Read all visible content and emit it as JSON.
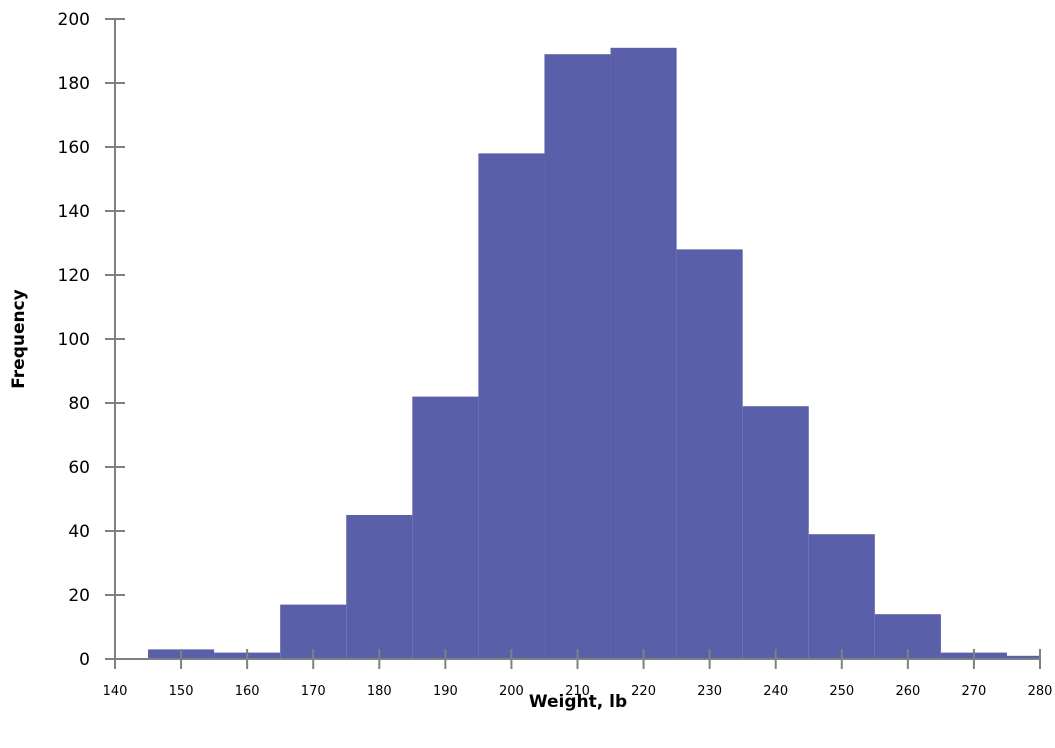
{
  "chart_data": {
    "type": "bar",
    "title": "",
    "xlabel": "Weight, lb",
    "ylabel": "Frequency",
    "xlim": [
      140,
      280
    ],
    "ylim": [
      0,
      200
    ],
    "x_ticks": [
      140,
      150,
      160,
      170,
      180,
      190,
      200,
      210,
      220,
      230,
      240,
      250,
      260,
      270,
      280
    ],
    "y_ticks": [
      0,
      20,
      40,
      60,
      80,
      100,
      120,
      140,
      160,
      180,
      200
    ],
    "bin_width": 10,
    "bins": [
      {
        "start": 145,
        "end": 155,
        "count": 3
      },
      {
        "start": 155,
        "end": 165,
        "count": 2
      },
      {
        "start": 165,
        "end": 175,
        "count": 17
      },
      {
        "start": 175,
        "end": 185,
        "count": 45
      },
      {
        "start": 185,
        "end": 195,
        "count": 82
      },
      {
        "start": 195,
        "end": 205,
        "count": 158
      },
      {
        "start": 205,
        "end": 215,
        "count": 189
      },
      {
        "start": 215,
        "end": 225,
        "count": 191
      },
      {
        "start": 225,
        "end": 235,
        "count": 128
      },
      {
        "start": 235,
        "end": 245,
        "count": 79
      },
      {
        "start": 245,
        "end": 255,
        "count": 39
      },
      {
        "start": 255,
        "end": 265,
        "count": 14
      },
      {
        "start": 265,
        "end": 275,
        "count": 2
      },
      {
        "start": 275,
        "end": 285,
        "count": 1
      }
    ],
    "grid": false,
    "colors": {
      "bar": "#5a5fa9",
      "axis": "#808080"
    }
  }
}
